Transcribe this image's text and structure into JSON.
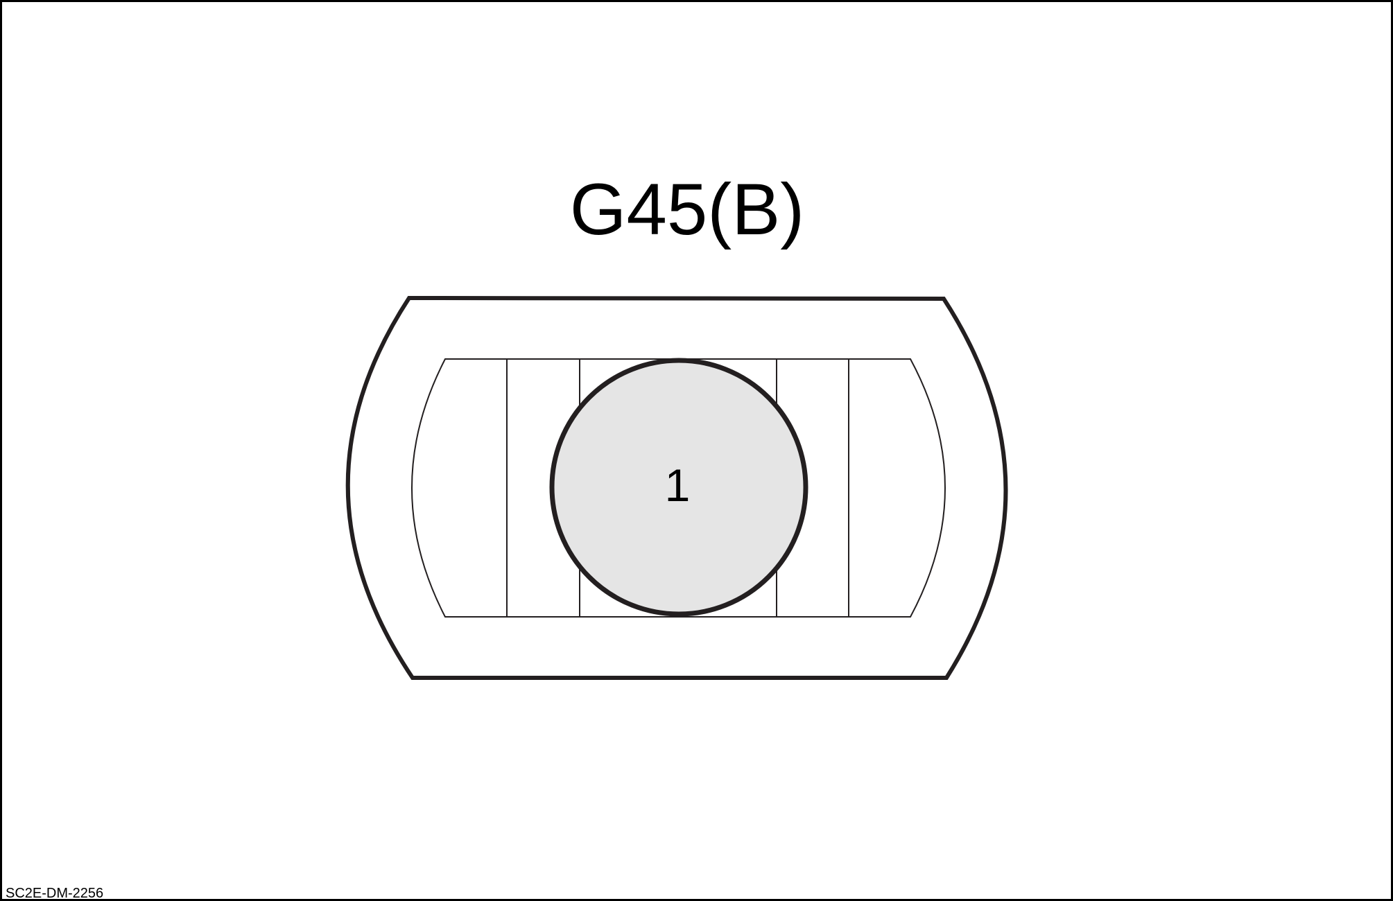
{
  "diagram": {
    "connector_id": "G45(B)",
    "figure_code": "SC2E-DM-2256",
    "pins": [
      {
        "number": "1",
        "color": "#e5e5e5"
      }
    ],
    "colors": {
      "outline": "#231f20",
      "border": "#000000",
      "background": "#ffffff",
      "pin_fill": "#e5e5e5"
    }
  }
}
